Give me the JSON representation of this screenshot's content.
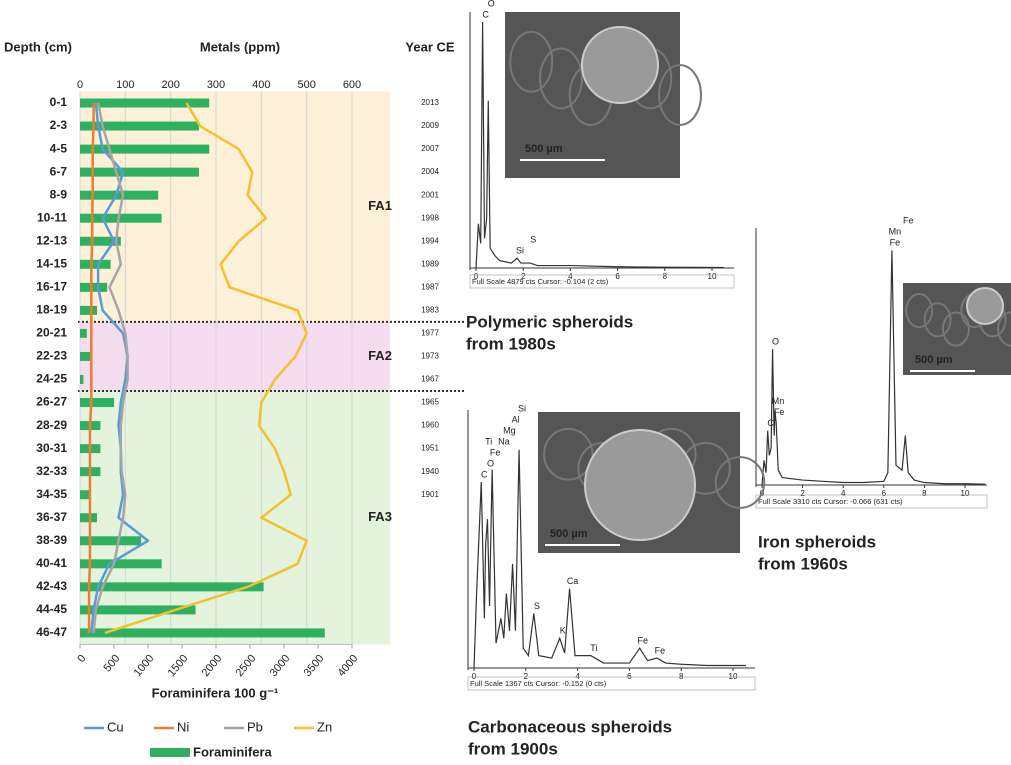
{
  "chart_data": [
    {
      "type": "combo",
      "depth_label": "Depth (cm)",
      "metals_label": "Metals (ppm)",
      "year_label": "Year CE",
      "xlabel": "Foraminifera 100 g⁻¹",
      "categories": [
        "0-1",
        "2-3",
        "4-5",
        "6-7",
        "8-9",
        "10-11",
        "12-13",
        "14-15",
        "16-17",
        "18-19",
        "20-21",
        "22-23",
        "24-25",
        "26-27",
        "28-29",
        "30-31",
        "32-33",
        "34-35",
        "36-37",
        "38-39",
        "40-41",
        "42-43",
        "44-45",
        "46-47"
      ],
      "years": [
        "2013",
        "2009",
        "2007",
        "2004",
        "2001",
        "1998",
        "1994",
        "1989",
        "1987",
        "1983",
        "1977",
        "1973",
        "1967",
        "1965",
        "1960",
        "1951",
        "1940",
        "1901",
        null,
        null,
        null,
        null,
        null,
        null
      ],
      "zones": [
        {
          "label": "FA1",
          "from": "0-1",
          "to": "18-19",
          "color": "#fdf0d8"
        },
        {
          "label": "FA2",
          "from": "20-21",
          "to": "24-25",
          "color": "#f6dcef"
        },
        {
          "label": "FA3",
          "from": "26-27",
          "to": "46-47",
          "color": "#e4f4dc"
        }
      ],
      "xlim": [
        0,
        4000
      ],
      "xticks": [
        0,
        500,
        1000,
        1500,
        2000,
        2500,
        3000,
        3500,
        4000
      ],
      "x2lim": [
        0,
        600
      ],
      "x2ticks": [
        0,
        100,
        200,
        300,
        400,
        500,
        600
      ],
      "grid": true,
      "series": [
        {
          "name": "Cu",
          "color": "#5b9bd5",
          "axis": "x2",
          "values": [
            35,
            40,
            50,
            95,
            80,
            50,
            75,
            40,
            40,
            50,
            95,
            105,
            100,
            90,
            85,
            90,
            90,
            95,
            85,
            150,
            65,
            40,
            30,
            25
          ]
        },
        {
          "name": "Ni",
          "color": "#ed7d31",
          "axis": "x2",
          "values": [
            30,
            30,
            28,
            28,
            28,
            27,
            27,
            25,
            25,
            25,
            25,
            25,
            25,
            25,
            22,
            22,
            22,
            22,
            22,
            22,
            22,
            20,
            20,
            20
          ]
        },
        {
          "name": "Pb",
          "color": "#a5a5a5",
          "axis": "x2",
          "values": [
            40,
            50,
            65,
            80,
            95,
            85,
            80,
            90,
            65,
            85,
            100,
            105,
            105,
            95,
            90,
            90,
            92,
            100,
            95,
            85,
            75,
            50,
            35,
            30
          ]
        },
        {
          "name": "Zn",
          "color": "#f2c12e",
          "axis": "x2",
          "values": [
            235,
            265,
            350,
            380,
            370,
            410,
            350,
            310,
            330,
            480,
            500,
            475,
            430,
            400,
            395,
            430,
            450,
            465,
            400,
            500,
            480,
            370,
            210,
            55
          ]
        },
        {
          "name": "Foraminifera",
          "color": "#2eb060",
          "axis": "x",
          "values": [
            1900,
            1750,
            1900,
            1750,
            1150,
            1200,
            600,
            450,
            400,
            250,
            100,
            150,
            50,
            500,
            300,
            300,
            300,
            150,
            250,
            900,
            1200,
            2700,
            1700,
            3600
          ]
        }
      ]
    },
    {
      "type": "line",
      "xlim": [
        0,
        10
      ],
      "xticks": [
        0,
        2,
        4,
        6,
        8,
        10
      ],
      "ylim": [
        0,
        100
      ],
      "color": "#333",
      "x": [
        0,
        0.1,
        0.2,
        0.28,
        0.36,
        0.45,
        0.52,
        0.6,
        0.8,
        1.0,
        1.5,
        1.74,
        1.9,
        2.3,
        2.6,
        3,
        4,
        6,
        8,
        10.5
      ],
      "values": [
        0,
        18,
        10,
        100,
        12,
        20,
        68,
        8,
        5,
        3,
        2,
        4,
        2,
        2,
        1,
        1,
        1,
        0.5,
        0.3,
        0.2
      ],
      "peaks": [
        {
          "label": "C",
          "x": 0.28
        },
        {
          "label": "O",
          "x": 0.52
        },
        {
          "label": "Si",
          "x": 1.74
        },
        {
          "label": "S",
          "x": 2.3
        }
      ],
      "footer": "Full Scale 4879 cts Cursor: -0.104  (2 cts)",
      "scale_label": "500 µm",
      "caption": [
        "Polymeric spheroids",
        "from 1980s"
      ]
    },
    {
      "type": "line",
      "xlim": [
        0,
        10
      ],
      "xticks": [
        0,
        2,
        4,
        6,
        8,
        10
      ],
      "ylim": [
        0,
        100
      ],
      "color": "#333",
      "x": [
        0,
        0.1,
        0.2,
        0.28,
        0.36,
        0.45,
        0.52,
        0.6,
        0.64,
        0.7,
        0.8,
        1,
        2,
        3,
        4,
        5,
        6,
        6.2,
        6.4,
        6.6,
        6.9,
        7.06,
        7.2,
        7.5,
        8,
        9,
        10,
        11
      ],
      "values": [
        0,
        10,
        5,
        22,
        12,
        15,
        55,
        20,
        30,
        25,
        6,
        3,
        2,
        1.5,
        1,
        1,
        1.5,
        5,
        95,
        8,
        6,
        20,
        5,
        2,
        1,
        0.5,
        0.5,
        0.3
      ],
      "peaks": [
        {
          "label": "C",
          "x": 0.28
        },
        {
          "label": "Fe",
          "x": 0.7
        },
        {
          "label": "Mn",
          "x": 0.64
        },
        {
          "label": "O",
          "x": 0.52
        },
        {
          "label": "Fe",
          "x": 6.4
        },
        {
          "label": "Mn",
          "x": 6.4
        },
        {
          "label": "Fe",
          "x": 7.06
        }
      ],
      "footer": "Full Scale 3310 cts Cursor: -0.066  (631 cts)",
      "scale_label": "500 µm",
      "caption": [
        "Iron spheroids",
        "from 1960s"
      ]
    },
    {
      "type": "line",
      "xlim": [
        0,
        10
      ],
      "xticks": [
        0,
        2,
        4,
        6,
        8,
        10
      ],
      "ylim": [
        0,
        100
      ],
      "color": "#333",
      "x": [
        0,
        0.1,
        0.28,
        0.4,
        0.45,
        0.52,
        0.6,
        0.7,
        0.85,
        1.04,
        1.15,
        1.25,
        1.37,
        1.49,
        1.6,
        1.74,
        1.9,
        2.1,
        2.31,
        2.5,
        3.0,
        3.31,
        3.5,
        3.69,
        3.9,
        4.51,
        5,
        6,
        6.4,
        6.7,
        7.06,
        7.4,
        8,
        9,
        10,
        10.5
      ],
      "values": [
        0,
        30,
        75,
        20,
        50,
        60,
        25,
        80,
        10,
        20,
        12,
        30,
        15,
        42,
        15,
        88,
        8,
        5,
        22,
        5,
        4,
        12,
        6,
        32,
        5,
        5,
        2,
        2,
        8,
        3,
        4,
        2,
        1.5,
        1,
        1,
        1
      ],
      "peaks": [
        {
          "label": "C",
          "x": 0.28
        },
        {
          "label": "O",
          "x": 0.52
        },
        {
          "label": "Fe",
          "x": 0.7
        },
        {
          "label": "Ti",
          "x": 0.45
        },
        {
          "label": "Na",
          "x": 1.04
        },
        {
          "label": "Mg",
          "x": 1.25
        },
        {
          "label": "Al",
          "x": 1.49
        },
        {
          "label": "Si",
          "x": 1.74
        },
        {
          "label": "S",
          "x": 2.31
        },
        {
          "label": "K",
          "x": 3.31
        },
        {
          "label": "Ca",
          "x": 3.69
        },
        {
          "label": "Ti",
          "x": 4.51
        },
        {
          "label": "Fe",
          "x": 6.4
        },
        {
          "label": "Fe",
          "x": 7.06
        }
      ],
      "footer": "Full Scale 1367 cts Cursor: -0.152  (0 cts)",
      "scale_label": "500 µm",
      "caption": [
        "Carbonaceous spheroids",
        "from 1900s"
      ]
    }
  ]
}
